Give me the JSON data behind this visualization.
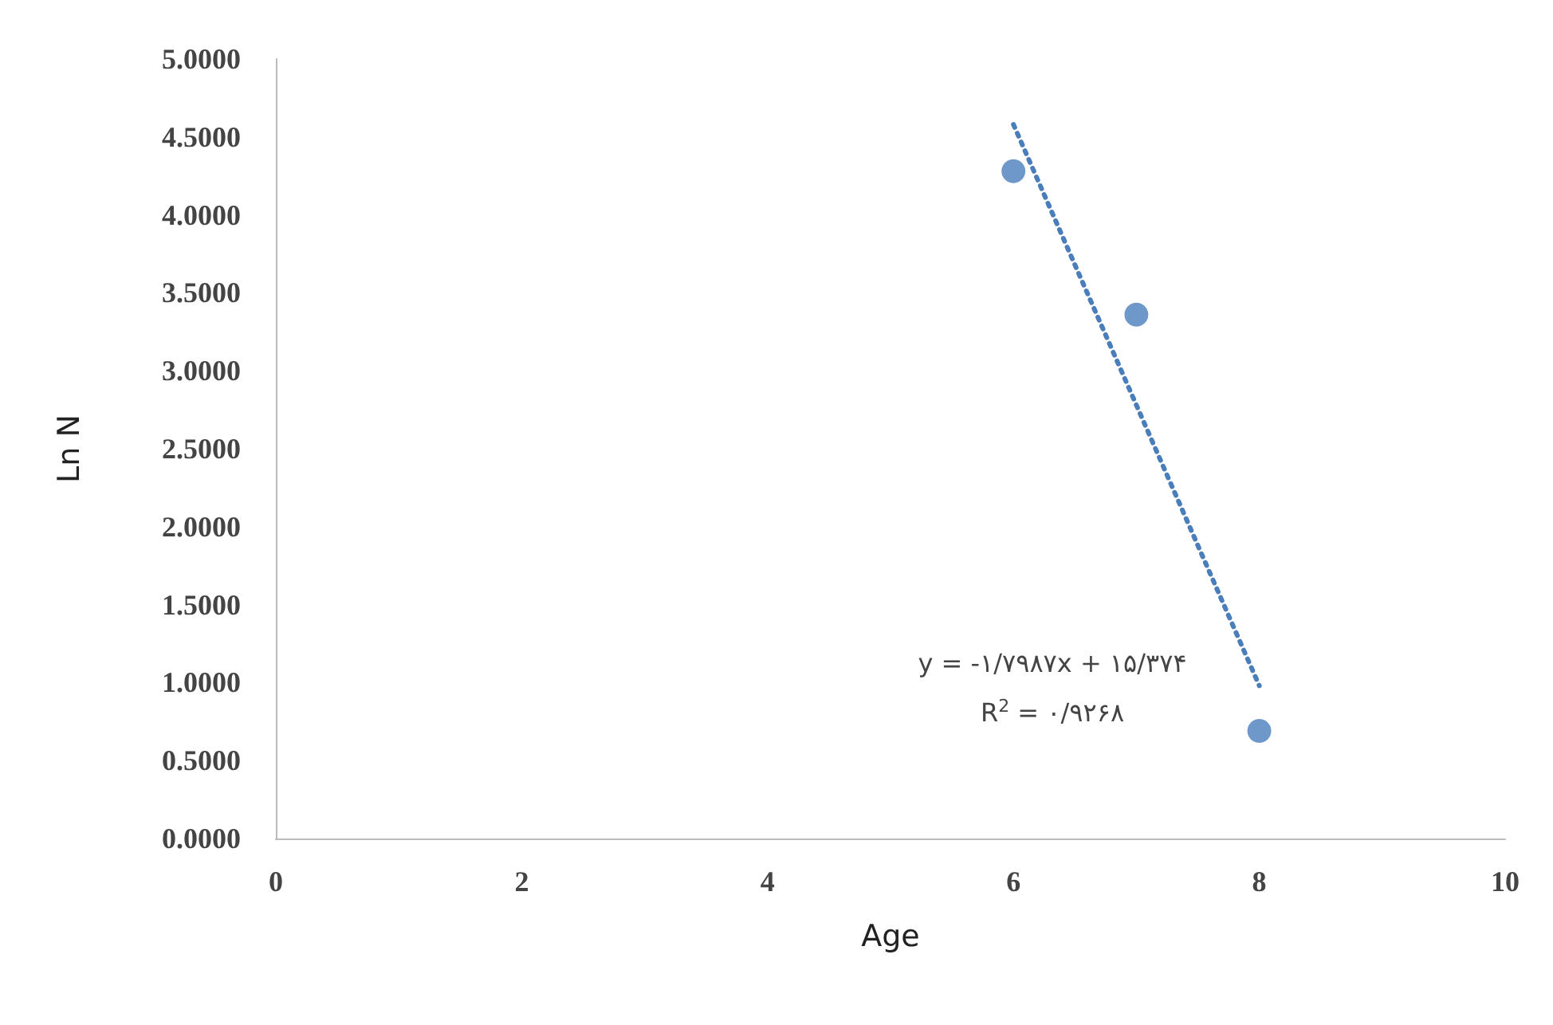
{
  "chart_data": {
    "type": "scatter",
    "xlabel": "Age",
    "ylabel": "Ln N",
    "x": [
      6,
      7,
      8
    ],
    "series": [
      {
        "color": "#4a7ebb",
        "marker": "circle",
        "values": [
          4.28,
          3.36,
          0.69
        ]
      },
      {
        "type": "line",
        "color": "#4a7ebb",
        "marker": "none",
        "line_style": "dotted",
        "x": [
          6,
          8
        ],
        "values": [
          4.58,
          0.98
        ]
      }
    ],
    "xlim": [
      0,
      10
    ],
    "xticks": [
      0,
      2,
      4,
      6,
      8,
      10
    ],
    "ylim": [
      0,
      5
    ],
    "yticks": [
      {
        "value": 0,
        "label": "0.0000"
      },
      {
        "value": 0.5,
        "label": "0.5000"
      },
      {
        "value": 1,
        "label": "1.0000"
      },
      {
        "value": 1.5,
        "label": "1.5000"
      },
      {
        "value": 2,
        "label": "2.0000"
      },
      {
        "value": 2.5,
        "label": "2.5000"
      },
      {
        "value": 3,
        "label": "3.0000"
      },
      {
        "value": 3.5,
        "label": "3.5000"
      },
      {
        "value": 4,
        "label": "4.0000"
      },
      {
        "value": 4.5,
        "label": "4.5000"
      },
      {
        "value": 5,
        "label": "5.0000"
      }
    ],
    "grid": false,
    "annotations": [
      "y = -۱/۷۹۸۷x + ۱۵/۳۷۴",
      "R$^{2}$ = ۰/۹۲۶۸"
    ]
  }
}
